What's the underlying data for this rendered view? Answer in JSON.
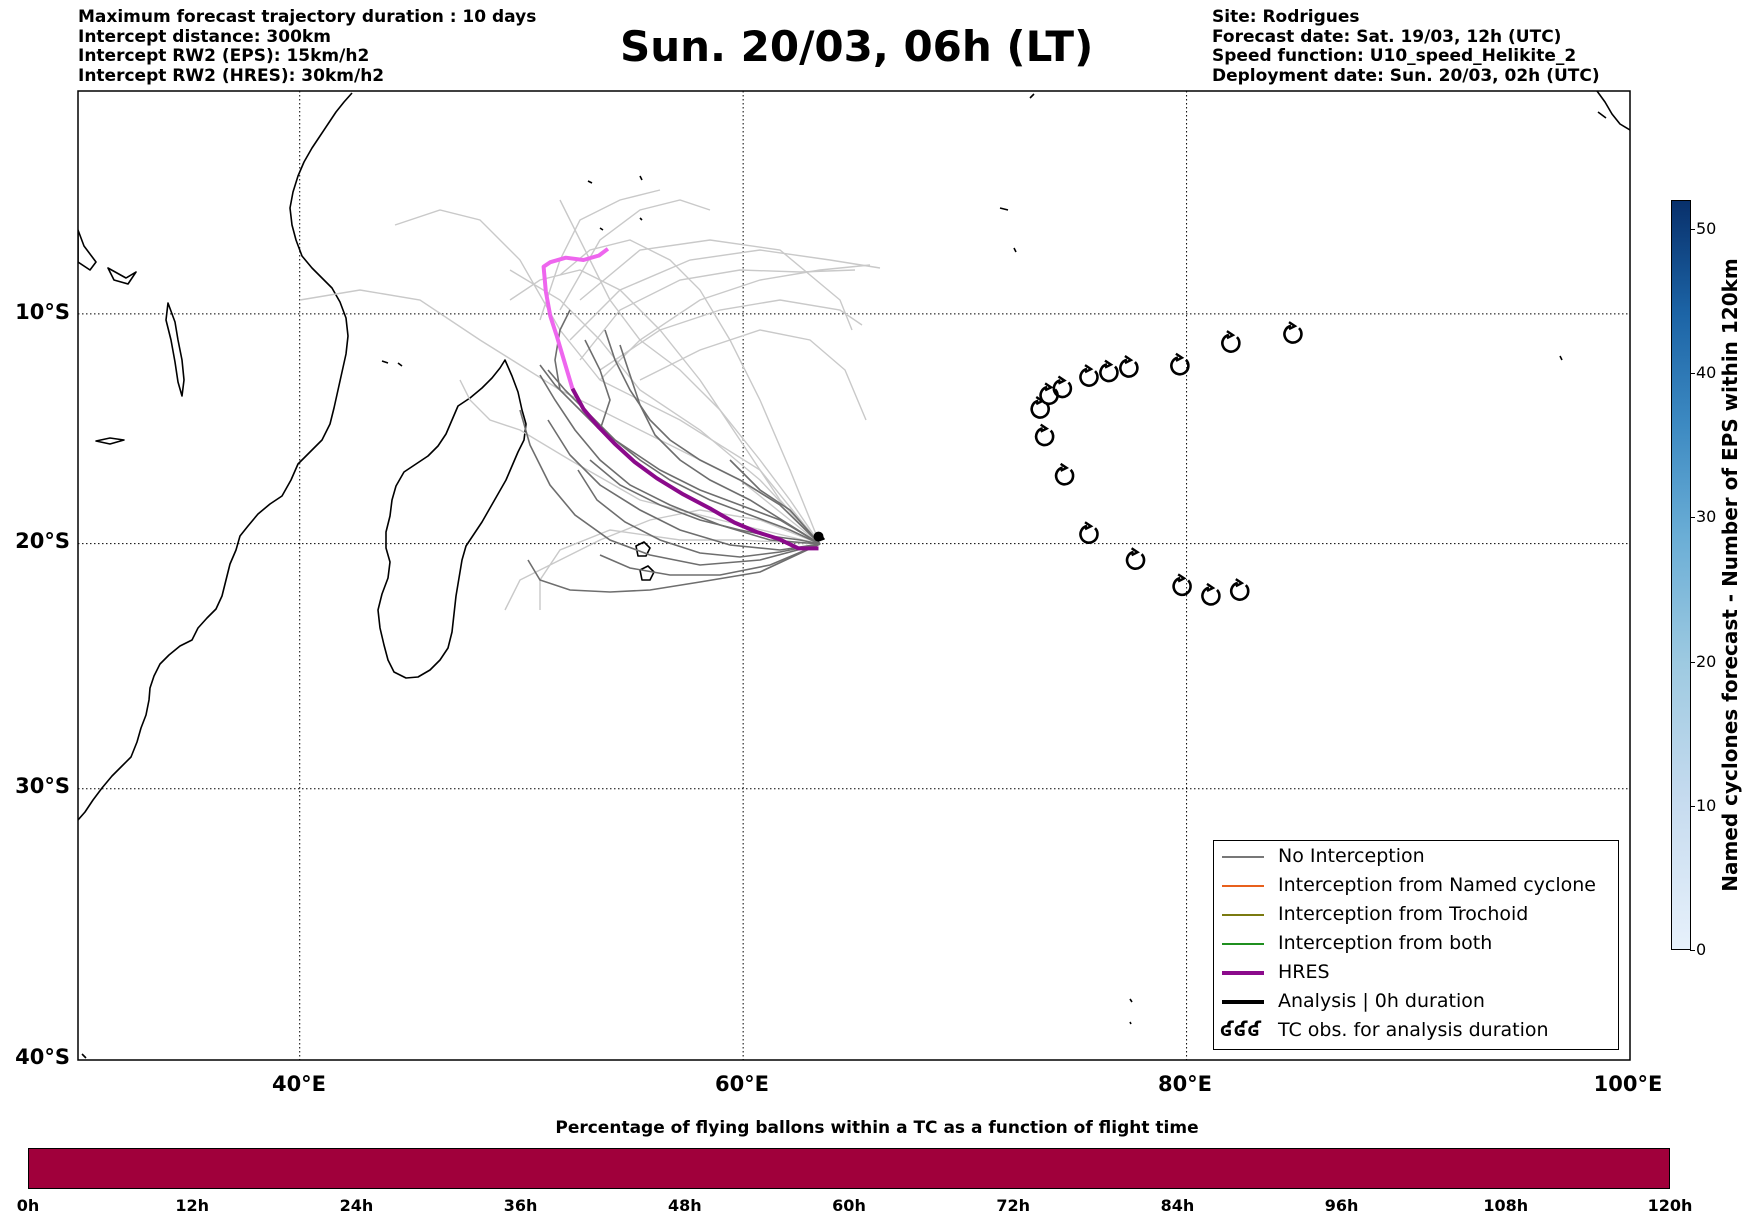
{
  "header_left": [
    "Maximum forecast trajectory duration : 10 days",
    "Intercept distance: 300km",
    "Intercept RW2 (EPS):  15km/h2",
    "Intercept RW2 (HRES): 30km/h2"
  ],
  "header_right": [
    "Site: Rodrigues",
    "Forecast date: Sat. 19/03, 12h (UTC)",
    "Speed function: U10_speed_Helikite_2",
    "Deployment date: Sun. 20/03, 02h (UTC)"
  ],
  "title": "Sun. 20/03, 06h (LT)",
  "map": {
    "lon_range": [
      30,
      100
    ],
    "lat_range": [
      -40,
      0
    ],
    "lat_labels": [
      "10°S",
      "20°S",
      "30°S",
      "40°S"
    ],
    "lon_labels": [
      "40°E",
      "60°E",
      "80°E",
      "100°E"
    ],
    "grid": true
  },
  "colors": {
    "no_interception": "#777777",
    "named_cyclone": "#e8601c",
    "trochoid": "#7a7a10",
    "both": "#1f8f1f",
    "hres": "#8b0a8b",
    "hres_late": "#ee66ee",
    "analysis": "#000000",
    "gradient_bar": "#a0003b"
  },
  "legend": [
    {
      "label": "No Interception",
      "style": "thin",
      "color": "#777777"
    },
    {
      "label": "Interception from Named cyclone",
      "style": "thin",
      "color": "#e8601c"
    },
    {
      "label": "Interception from Trochoid",
      "style": "thin",
      "color": "#7a7a10"
    },
    {
      "label": "Interception from both",
      "style": "thin",
      "color": "#1f8f1f"
    },
    {
      "label": "HRES",
      "style": "thick",
      "color": "#8b0a8b"
    },
    {
      "label": "Analysis | 0h duration",
      "style": "thick",
      "color": "#000000"
    },
    {
      "label": "TC obs. for analysis duration",
      "style": "symbol",
      "symbol": "ʛʛʛ"
    }
  ],
  "site": {
    "lon": 63.4,
    "lat": -19.7
  },
  "hres_track": {
    "lon": [
      63.4,
      62.5,
      61.6,
      60.6,
      59.6,
      58.5,
      57.3,
      56.1,
      55.1,
      54.2,
      53.5,
      52.8,
      52.3
    ],
    "lat": [
      -20.2,
      -20.2,
      -19.8,
      -19.5,
      -19.1,
      -18.5,
      -17.9,
      -17.2,
      -16.5,
      -15.7,
      -15.0,
      -14.2,
      -13.3
    ]
  },
  "hres_late_track": {
    "lon": [
      52.3,
      51.9,
      51.6,
      51.3,
      51.1,
      51.0,
      51.3,
      52.0,
      52.8,
      53.5,
      53.9
    ],
    "lat": [
      -13.3,
      -12.0,
      -11.0,
      -10.1,
      -9.0,
      -7.9,
      -7.7,
      -7.5,
      -7.6,
      -7.4,
      -7.1
    ]
  },
  "tc_obs": [
    {
      "lon": 84.8,
      "lat": -10.9
    },
    {
      "lon": 82.0,
      "lat": -11.3
    },
    {
      "lon": 79.7,
      "lat": -12.3
    },
    {
      "lon": 77.4,
      "lat": -12.4
    },
    {
      "lon": 76.5,
      "lat": -12.6
    },
    {
      "lon": 75.6,
      "lat": -12.8
    },
    {
      "lon": 74.4,
      "lat": -13.3
    },
    {
      "lon": 73.8,
      "lat": -13.6
    },
    {
      "lon": 73.4,
      "lat": -14.2
    },
    {
      "lon": 73.6,
      "lat": -15.4
    },
    {
      "lon": 74.5,
      "lat": -17.1
    },
    {
      "lon": 75.6,
      "lat": -19.6
    },
    {
      "lon": 77.7,
      "lat": -20.7
    },
    {
      "lon": 79.8,
      "lat": -21.8
    },
    {
      "lon": 81.1,
      "lat": -22.2
    },
    {
      "lon": 82.4,
      "lat": -22.0
    }
  ],
  "colorbar_vertical": {
    "label": "Named cyclones forecast - Number of EPS within 120km",
    "ticks": [
      "0",
      "10",
      "20",
      "30",
      "40",
      "50"
    ],
    "range": [
      0,
      52
    ]
  },
  "colorbar_horizontal": {
    "title": "Percentage of flying ballons within a TC as a function of flight time",
    "ticks": [
      "0h",
      "12h",
      "24h",
      "36h",
      "48h",
      "60h",
      "72h",
      "84h",
      "96h",
      "108h",
      "120h"
    ]
  }
}
